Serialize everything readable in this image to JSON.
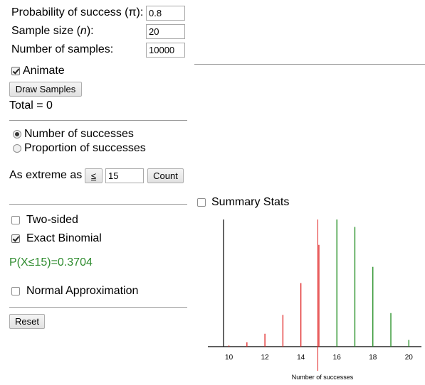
{
  "params": {
    "prob_label": "Probability of success (π):",
    "prob_value": "0.8",
    "size_label_pre": "Sample size (",
    "size_label_var": "n",
    "size_label_post": "):",
    "size_value": "20",
    "samples_label": "Number of samples:",
    "samples_value": "10000"
  },
  "animate": {
    "label": "Animate",
    "checked": true
  },
  "draw_button": "Draw Samples",
  "total": "Total = 0",
  "mode": {
    "options": [
      "Number of successes",
      "Proportion of successes"
    ],
    "selected": 0
  },
  "extreme": {
    "label": "As extreme as",
    "operator": "≤",
    "value": "15",
    "count_button": "Count"
  },
  "two_sided": {
    "label": "Two-sided",
    "checked": false
  },
  "exact_binomial": {
    "label": "Exact Binomial",
    "checked": true
  },
  "result": "P(X≤15)=0.3704",
  "normal_approx": {
    "label": "Normal Approximation",
    "checked": false
  },
  "reset_button": "Reset",
  "summary_stats": {
    "label": "Summary Stats",
    "checked": false
  },
  "colors": {
    "in_tail": "#e02020",
    "out_tail": "#1a8a1a",
    "cutoff": "#e02020",
    "result_text": "#2e8b2e"
  },
  "chart_data": {
    "type": "bar",
    "xlabel": "Number of successes",
    "ylabel": "",
    "x": [
      10,
      11,
      12,
      13,
      14,
      15,
      16,
      17,
      18,
      19,
      20
    ],
    "values": [
      0.002,
      0.0074,
      0.0222,
      0.0545,
      0.1091,
      0.1746,
      0.2182,
      0.2054,
      0.1369,
      0.0576,
      0.0115
    ],
    "xticks": [
      "10",
      "12",
      "14",
      "16",
      "18",
      "20"
    ],
    "xlim": [
      9.7,
      20.7
    ],
    "cutoff": 15,
    "tail": "lower",
    "grid": false
  }
}
